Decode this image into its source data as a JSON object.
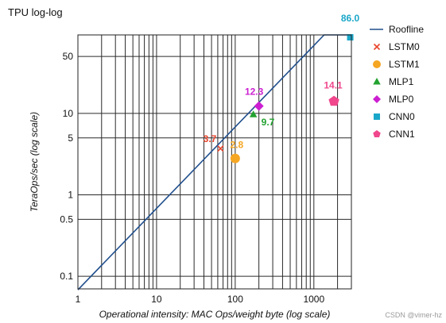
{
  "chart_data": {
    "type": "scatter",
    "title": "TPU log-log",
    "xlabel": "Operational intensity: MAC Ops/weight byte (log scale)",
    "ylabel": "TeraOps/sec (log scale)",
    "xscale": "log",
    "yscale": "log",
    "xlim": [
      1,
      3000
    ],
    "ylim": [
      0.07,
      92
    ],
    "xticks": [
      1,
      10,
      100,
      1000
    ],
    "yticks": [
      0.1,
      0.5,
      1,
      5,
      10,
      50
    ],
    "grid": true,
    "legend_position": "right",
    "roofline": {
      "name": "Roofline",
      "color": "#1f4e8c",
      "peak": 92,
      "ridge_x": 1350,
      "x_start": 1
    },
    "series": [
      {
        "name": "LSTM0",
        "marker": "x",
        "color": "#e8452c",
        "x": 65,
        "y": 3.7,
        "label": "3.7",
        "label_color": "#e8452c"
      },
      {
        "name": "LSTM1",
        "marker": "circle",
        "color": "#f5a623",
        "x": 100,
        "y": 2.8,
        "label": "2.8",
        "label_color": "#f5a623"
      },
      {
        "name": "MLP1",
        "marker": "triangle",
        "color": "#22a22f",
        "x": 170,
        "y": 9.7,
        "label": "9.7",
        "label_color": "#22a22f"
      },
      {
        "name": "MLP0",
        "marker": "diamond",
        "color": "#cc1fd1",
        "x": 200,
        "y": 12.3,
        "label": "12.3",
        "label_color": "#cc1fd1"
      },
      {
        "name": "CNN0",
        "marker": "square",
        "color": "#1aa7c9",
        "x": 2900,
        "y": 86.0,
        "label": "86.0",
        "label_color": "#1aa7c9"
      },
      {
        "name": "CNN1",
        "marker": "pentagon",
        "color": "#f0478d",
        "x": 1800,
        "y": 14.1,
        "label": "14.1",
        "label_color": "#f0478d"
      }
    ]
  },
  "watermark": "CSDN @vimer-hz"
}
